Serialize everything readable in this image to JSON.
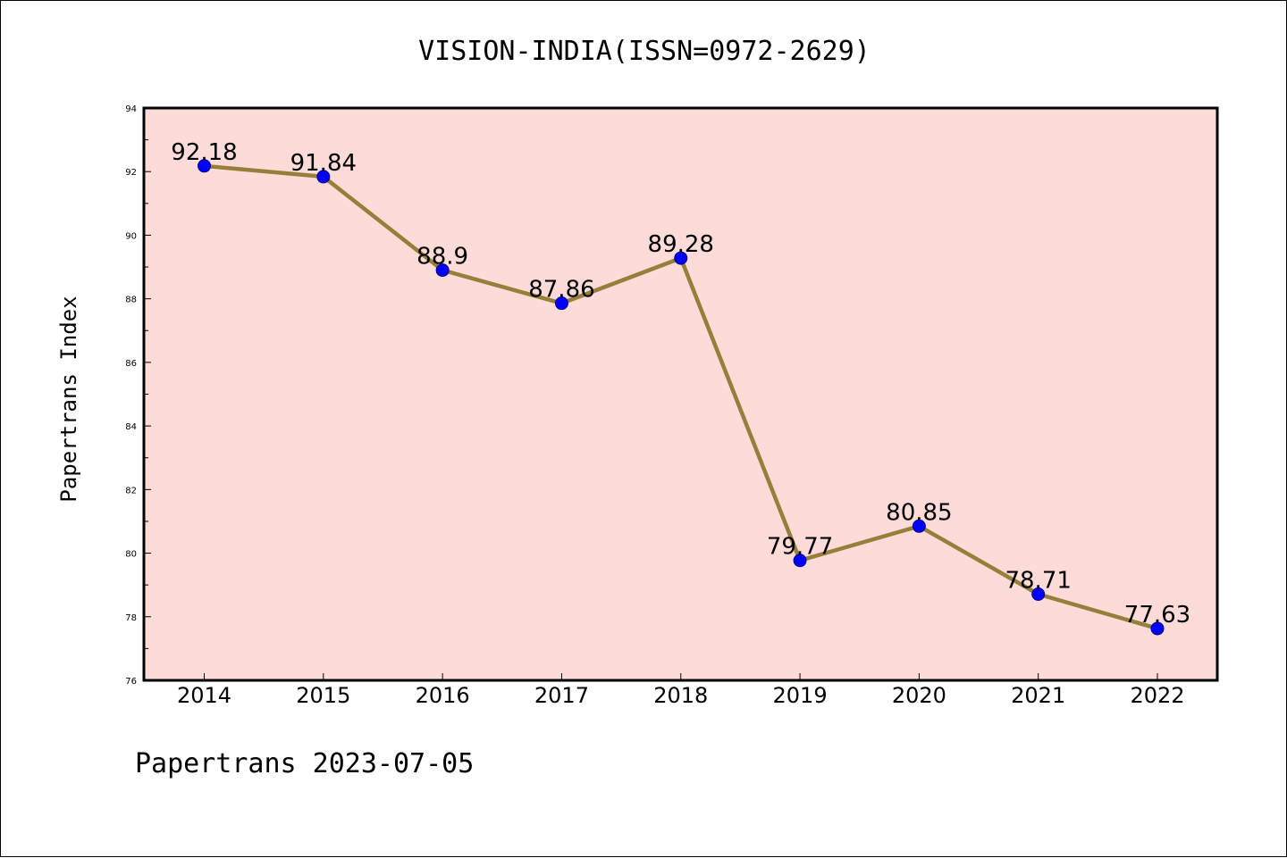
{
  "chart_data": {
    "type": "line",
    "title": "VISION-INDIA(ISSN=0972-2629)",
    "xlabel": "",
    "ylabel": "Papertrans Index",
    "categories": [
      "2014",
      "2015",
      "2016",
      "2017",
      "2018",
      "2019",
      "2020",
      "2021",
      "2022"
    ],
    "series": [
      {
        "values": [
          92.18,
          91.84,
          88.9,
          87.86,
          89.28,
          79.77,
          80.85,
          78.71,
          77.63
        ],
        "labels": [
          "92.18",
          "91.84",
          "88.9",
          "87.86",
          "89.28",
          "79.77",
          "80.85",
          "78.71",
          "77.63"
        ]
      }
    ],
    "ylim": [
      76,
      94
    ],
    "yticks": [
      "76",
      "78",
      "80",
      "82",
      "84",
      "86",
      "88",
      "90",
      "92",
      "94"
    ],
    "grid": false,
    "colors": {
      "plot_background": "#fddbd8",
      "line": "#94803a",
      "marker": "#0000ff"
    }
  },
  "footer": "Papertrans 2023-07-05"
}
